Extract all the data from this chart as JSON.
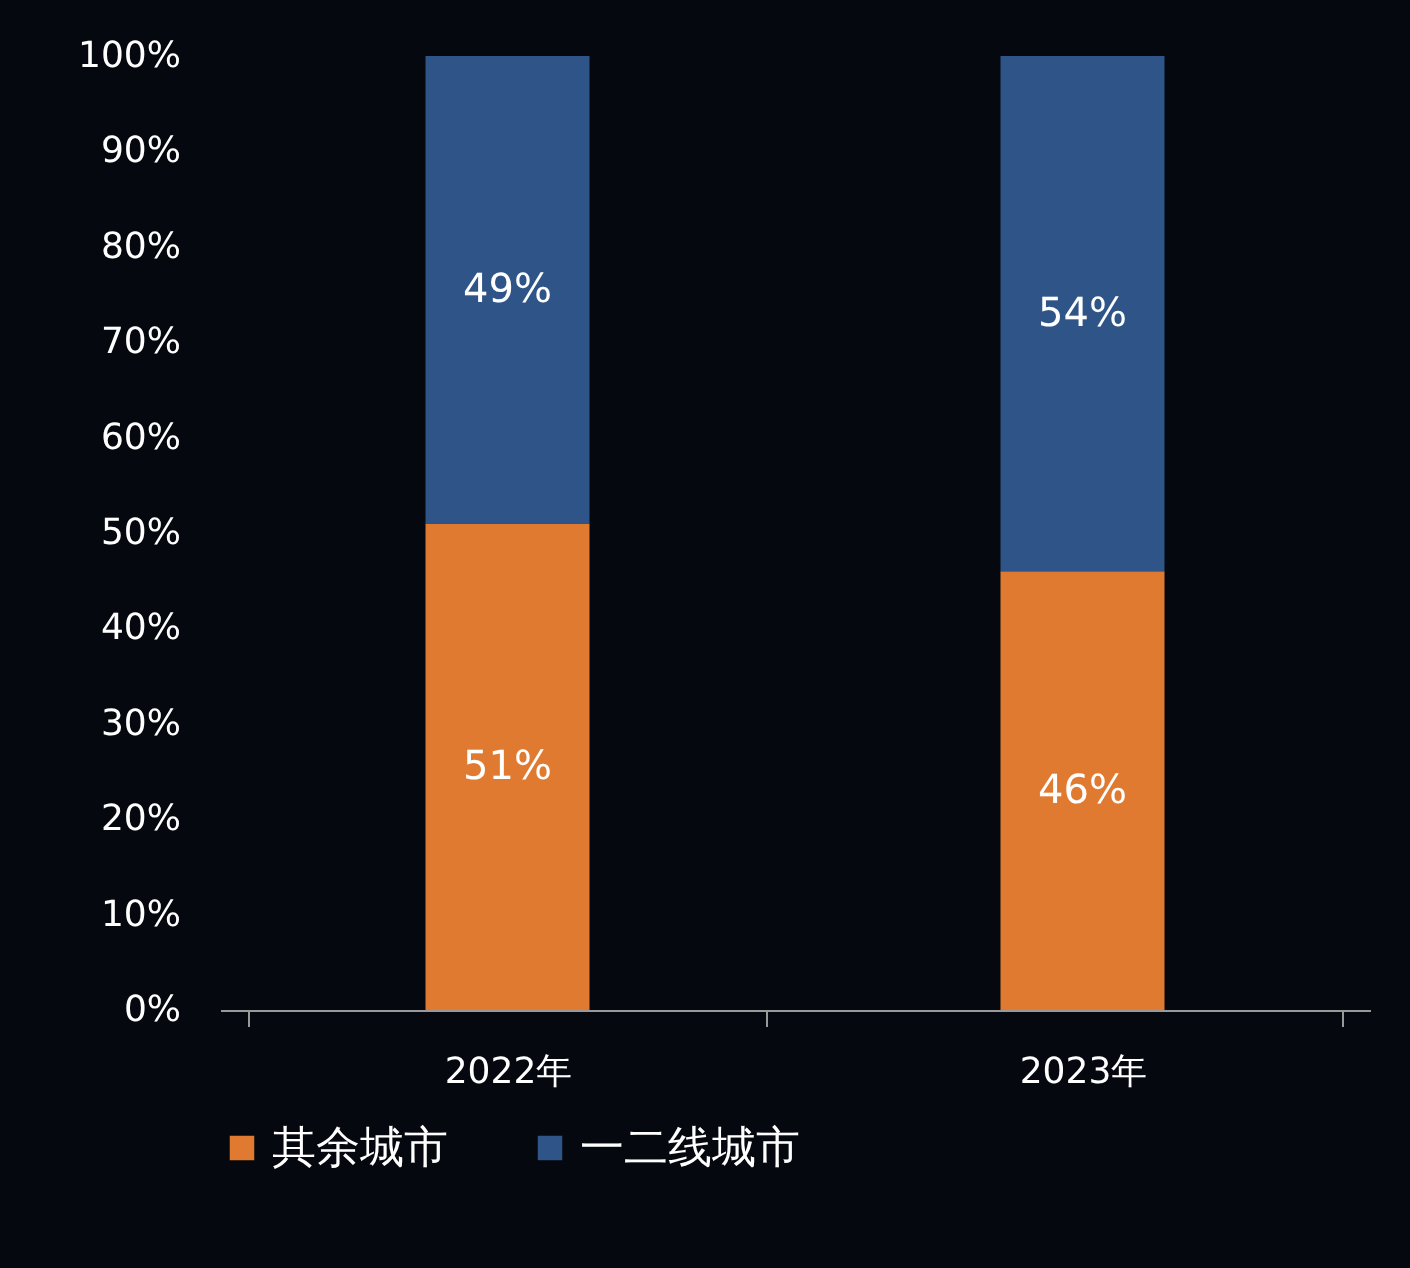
{
  "chart_data": {
    "type": "bar",
    "stacked": true,
    "categories": [
      "2022年",
      "2023年"
    ],
    "series": [
      {
        "name": "其余城市",
        "color": "#e07a30",
        "values": [
          51,
          46
        ]
      },
      {
        "name": "一二线城市",
        "color": "#2f5488",
        "values": [
          49,
          54
        ]
      }
    ],
    "ylim": [
      0,
      100
    ],
    "yticks": [
      {
        "value": 0,
        "label": "0%"
      },
      {
        "value": 10,
        "label": "10%"
      },
      {
        "value": 20,
        "label": "20%"
      },
      {
        "value": 30,
        "label": "30%"
      },
      {
        "value": 40,
        "label": "40%"
      },
      {
        "value": 50,
        "label": "50%"
      },
      {
        "value": 60,
        "label": "60%"
      },
      {
        "value": 70,
        "label": "70%"
      },
      {
        "value": 80,
        "label": "80%"
      },
      {
        "value": 90,
        "label": "90%"
      },
      {
        "value": 100,
        "label": "100%"
      }
    ],
    "value_labels": [
      "51%",
      "46%",
      "49%",
      "54%"
    ],
    "grid": false,
    "legend": "bottom"
  }
}
